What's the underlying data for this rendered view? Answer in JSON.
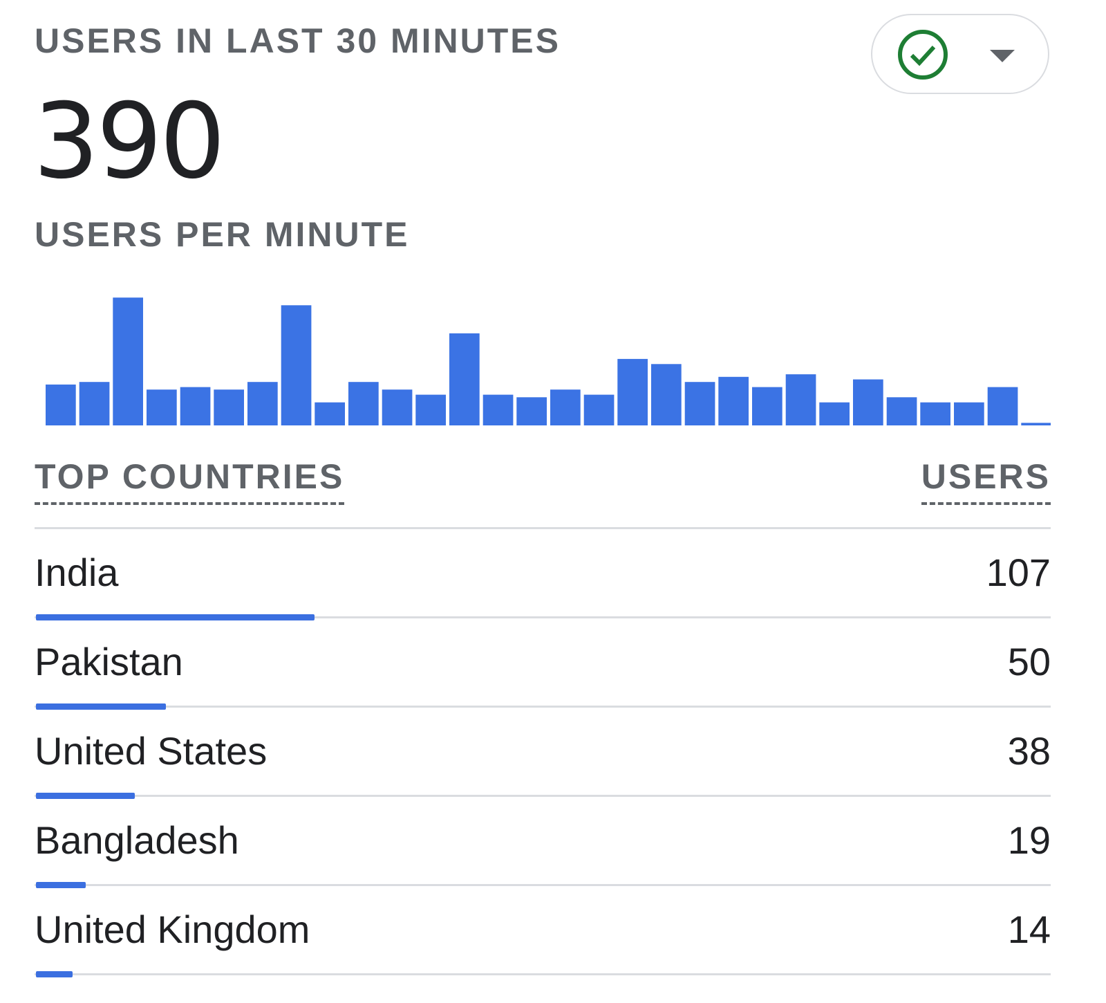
{
  "header": {
    "title": "USERS IN LAST 30 MINUTES",
    "total_users": "390",
    "status_icon": "check-circle-icon",
    "dropdown_icon": "caret-down-icon"
  },
  "chart_label": "USERS PER MINUTE",
  "colors": {
    "bar": "#3b73e4",
    "status": "#1e7e34"
  },
  "chart_data": {
    "type": "bar",
    "title": "USERS PER MINUTE",
    "values": [
      16,
      17,
      50,
      14,
      15,
      14,
      17,
      47,
      9,
      17,
      14,
      12,
      36,
      12,
      11,
      14,
      12,
      26,
      24,
      17,
      19,
      15,
      20,
      9,
      18,
      11,
      9,
      9,
      15,
      1
    ],
    "grid": false
  },
  "table": {
    "col_country": "TOP COUNTRIES",
    "col_users": "USERS",
    "rows": [
      {
        "country": "India",
        "users": "107",
        "value": 107
      },
      {
        "country": "Pakistan",
        "users": "50",
        "value": 50
      },
      {
        "country": "United States",
        "users": "38",
        "value": 38
      },
      {
        "country": "Bangladesh",
        "users": "19",
        "value": 19
      },
      {
        "country": "United Kingdom",
        "users": "14",
        "value": 14
      }
    ]
  }
}
